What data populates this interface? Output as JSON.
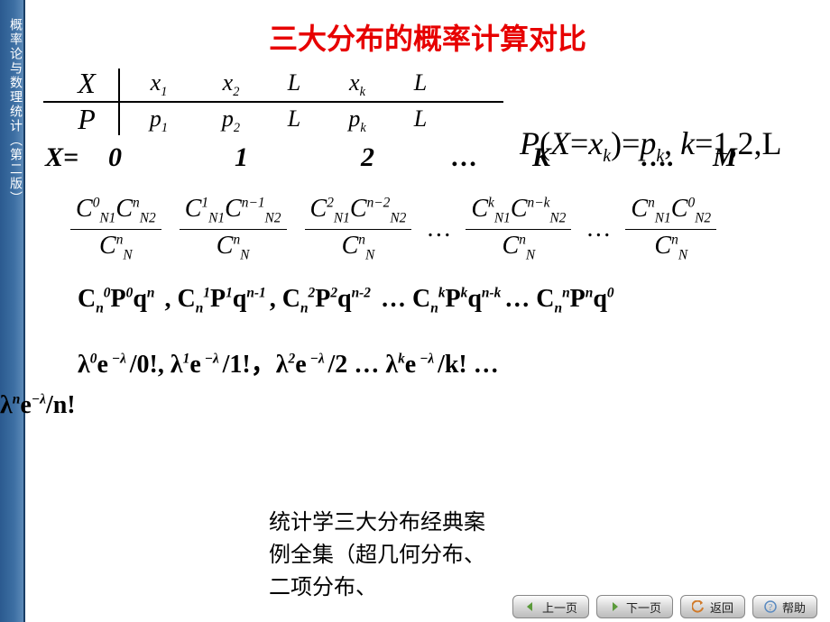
{
  "colors": {
    "title": "#e70000",
    "sidebar_gradient": [
      "#2b5a8f",
      "#3d6fa3",
      "#5c8ab8"
    ],
    "sidebar_border": "#1a3f66",
    "text": "#000000",
    "nav_button_gradient": [
      "#fdfdfd",
      "#d8d8d8",
      "#bcbcbc"
    ],
    "nav_border": "#888888",
    "nav_icon_prev": "#5a9a3a",
    "nav_icon_next": "#5a9a3a",
    "nav_icon_return": "#d07a2a",
    "nav_icon_help": "#5a8ac0",
    "background": "#ffffff"
  },
  "typography": {
    "title_fontsize": 32,
    "body_fontsize": 28,
    "sidebar_fontsize": 14,
    "nav_fontsize": 13,
    "footer_fontsize": 24,
    "font_serif": "Times New Roman",
    "font_cjk": "SimSun"
  },
  "sidebar": {
    "text": "概率论与数理统计（第二版）"
  },
  "title": "三大分布的概率计算对比",
  "dist_table": {
    "row_headers": [
      "X",
      "P"
    ],
    "cols": [
      {
        "x": "x",
        "xsub": "1",
        "p": "p",
        "psub": "1"
      },
      {
        "x": "x",
        "xsub": "2",
        "p": "p",
        "psub": "2"
      },
      {
        "x": "L",
        "xsub": "",
        "p": "L",
        "psub": ""
      },
      {
        "x": "x",
        "xsub": "k",
        "p": "p",
        "psub": "k"
      },
      {
        "x": "L",
        "xsub": "",
        "p": "L",
        "psub": ""
      }
    ]
  },
  "pxk": {
    "lhs_P": "P",
    "lhs_open": "(",
    "lhs_X": "X",
    "eq1": "=",
    "lhs_x": "x",
    "lhs_sub": "k",
    "lhs_close": ")",
    "eq2": "=",
    "rhs_p": "p",
    "rhs_sub": "k",
    "comma": ", ",
    "k": "k",
    "eq3": "=",
    "tail": "1,2,L"
  },
  "xrow": {
    "label": "X=",
    "vals": [
      "0",
      "1",
      "2",
      "…",
      "K",
      "….",
      "M"
    ]
  },
  "hyper_row": {
    "type": "fraction_sequence",
    "items": [
      {
        "num_a_sub": "N1",
        "num_a_sup": "0",
        "num_b_sub": "N2",
        "num_b_sup": "n",
        "den_sub": "N",
        "den_sup": "n"
      },
      {
        "num_a_sub": "N1",
        "num_a_sup": "1",
        "num_b_sub": "N2",
        "num_b_sup": "n−1",
        "den_sub": "N",
        "den_sup": "n"
      },
      {
        "num_a_sub": "N1",
        "num_a_sup": "2",
        "num_b_sub": "N2",
        "num_b_sup": "n−2",
        "den_sub": "N",
        "den_sup": "n"
      },
      "…",
      {
        "num_a_sub": "N1",
        "num_a_sup": "k",
        "num_b_sub": "N2",
        "num_b_sup": "n−k",
        "den_sub": "N",
        "den_sup": "n"
      },
      "…",
      {
        "num_a_sub": "N1",
        "num_a_sup": "n",
        "num_b_sub": "N2",
        "num_b_sup": "0",
        "den_sub": "N",
        "den_sup": "n"
      }
    ],
    "C": "C"
  },
  "binom_row": {
    "type": "term_sequence",
    "C": "C",
    "P": "P",
    "q": "q",
    "nsub": "n",
    "items": [
      {
        "c_sup": "0",
        "p_sup": "0",
        "q_sup": "n",
        "sep": " , "
      },
      {
        "c_sup": "1",
        "p_sup": "1",
        "q_sup": "n-1",
        "sep": ",  "
      },
      {
        "c_sup": "2",
        "p_sup": "2",
        "q_sup": "n-2",
        "sep": "  … "
      },
      {
        "c_sup": "k",
        "p_sup": "k",
        "q_sup": "n-k",
        "sep": "… "
      },
      {
        "c_sup": "n",
        "p_sup": "n",
        "q_sup": "0",
        "sep": ""
      }
    ]
  },
  "poisson_row": {
    "type": "term_sequence",
    "lambda": "λ",
    "e": "e",
    "neg_lambda": "−λ",
    "items": [
      {
        "l_sup": "0",
        "den": "0!",
        "sep": ",   "
      },
      {
        "l_sup": "1",
        "den": "1!",
        "sep": "，"
      },
      {
        "l_sup": "2",
        "den": "2",
        "sep": "    …   "
      },
      {
        "l_sup": "k",
        "den": "k!",
        "sep": "    …   "
      }
    ],
    "tail": {
      "l_sup": "n",
      "den": "n!"
    }
  },
  "footer_text": "统计学三大分布经典案例全集（超几何分布、二项分布、",
  "nav": {
    "prev": "上一页",
    "next": "下一页",
    "return": "返回",
    "help": "帮助"
  }
}
